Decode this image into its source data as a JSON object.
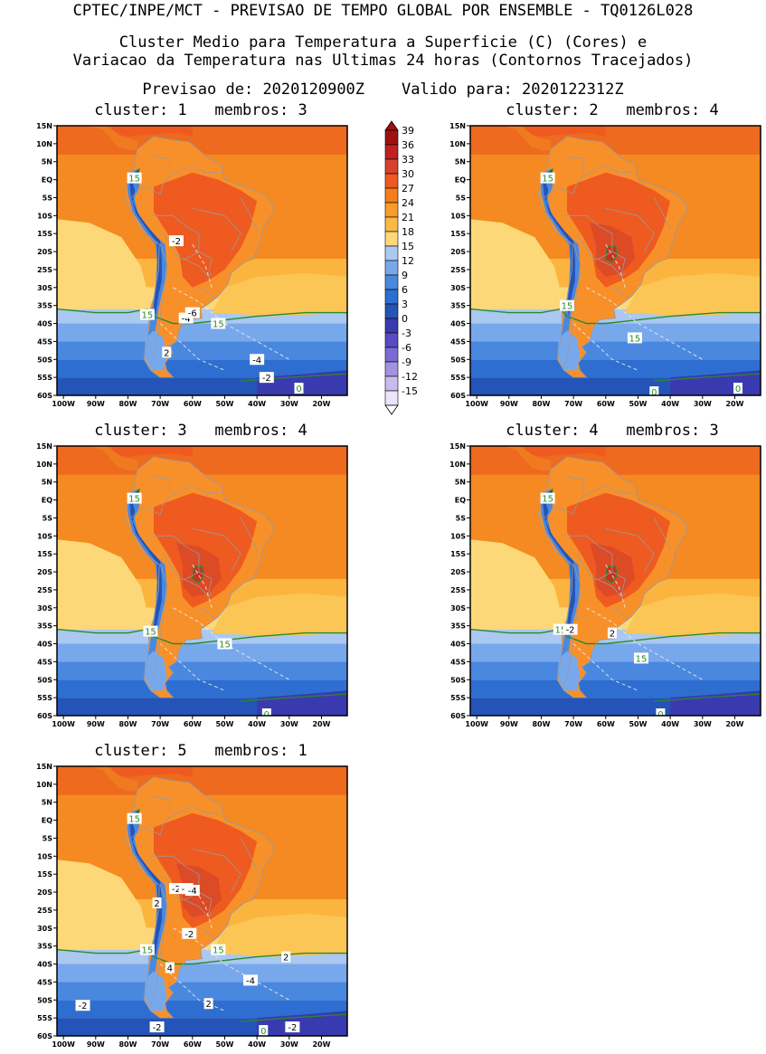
{
  "header": {
    "line1": "CPTEC/INPE/MCT - PREVISAO DE TEMPO GLOBAL POR ENSEMBLE - TQ0126L028",
    "line2": "Cluster Medio para Temperatura a Superficie (C) (Cores) e",
    "line3": "Variacao da Temperatura nas Ultimas 24 horas (Contornos Tracejados)",
    "line4": "Previsao de: 2020120900Z    Valido para: 2020122312Z"
  },
  "lat_labels": [
    "15N",
    "10N",
    "5N",
    "EQ",
    "5S",
    "10S",
    "15S",
    "20S",
    "25S",
    "30S",
    "35S",
    "40S",
    "45S",
    "50S",
    "55S",
    "60S"
  ],
  "lon_labels": [
    "100W",
    "90W",
    "80W",
    "70W",
    "60W",
    "50W",
    "40W",
    "30W",
    "20W"
  ],
  "colorbar": {
    "labels": [
      "39",
      "36",
      "33",
      "30",
      "27",
      "24",
      "21",
      "18",
      "15",
      "12",
      "9",
      "6",
      "3",
      "0",
      "-3",
      "-6",
      "-9",
      "-12",
      "-15"
    ],
    "colors": [
      "#a01010",
      "#c02020",
      "#d84030",
      "#ee5a20",
      "#f57d1c",
      "#fa9c28",
      "#fbb844",
      "#fdd878",
      "#aac8f0",
      "#78a8ec",
      "#4a88e0",
      "#2e6ed0",
      "#2454b8",
      "#3a3ab0",
      "#5a4ac4",
      "#7c6ad4",
      "#a292e2",
      "#c8bcee",
      "#ebe4fa"
    ]
  },
  "panels": [
    {
      "title": "cluster: 1   membros: 3",
      "labels": [
        {
          "t": "15",
          "lon": -78,
          "lat": 0.5,
          "c": "green"
        },
        {
          "t": "-2",
          "lon": -65,
          "lat": -17,
          "c": "black"
        },
        {
          "t": "15",
          "lon": -74,
          "lat": -37.5,
          "c": "green"
        },
        {
          "t": "-4",
          "lon": -62,
          "lat": -38.5,
          "c": "black"
        },
        {
          "t": "-6",
          "lon": -60,
          "lat": -37,
          "c": "black"
        },
        {
          "t": "15",
          "lon": -52,
          "lat": -40,
          "c": "green"
        },
        {
          "t": "2",
          "lon": -68,
          "lat": -48,
          "c": "black"
        },
        {
          "t": "-4",
          "lon": -40,
          "lat": -50,
          "c": "black"
        },
        {
          "t": "-2",
          "lon": -37,
          "lat": -55,
          "c": "black"
        },
        {
          "t": "0",
          "lon": -27,
          "lat": -58,
          "c": "green"
        }
      ]
    },
    {
      "title": "cluster: 2   membros: 4",
      "labels": [
        {
          "t": "15",
          "lon": -78,
          "lat": 0.5,
          "c": "green"
        },
        {
          "t": "15",
          "lon": -72,
          "lat": -35,
          "c": "green"
        },
        {
          "t": "15",
          "lon": -51,
          "lat": -44,
          "c": "green"
        },
        {
          "t": "0",
          "lon": -45,
          "lat": -59,
          "c": "green"
        },
        {
          "t": "0",
          "lon": -19,
          "lat": -58,
          "c": "green"
        }
      ]
    },
    {
      "title": "cluster: 3   membros: 4",
      "labels": [
        {
          "t": "15",
          "lon": -78,
          "lat": 0.5,
          "c": "green"
        },
        {
          "t": "15",
          "lon": -73,
          "lat": -36.5,
          "c": "green"
        },
        {
          "t": "15",
          "lon": -50,
          "lat": -40,
          "c": "green"
        },
        {
          "t": "0",
          "lon": -37,
          "lat": -59.5,
          "c": "green"
        }
      ]
    },
    {
      "title": "cluster: 4   membros: 3",
      "labels": [
        {
          "t": "15",
          "lon": -78,
          "lat": 0.5,
          "c": "green"
        },
        {
          "t": "15",
          "lon": -74,
          "lat": -36,
          "c": "green"
        },
        {
          "t": "-2",
          "lon": -71,
          "lat": -36,
          "c": "black"
        },
        {
          "t": "2",
          "lon": -58,
          "lat": -37,
          "c": "black"
        },
        {
          "t": "15",
          "lon": -49,
          "lat": -44,
          "c": "green"
        },
        {
          "t": "0",
          "lon": -43,
          "lat": -59.5,
          "c": "green"
        }
      ]
    },
    {
      "title": "cluster: 5   membros: 1",
      "labels": [
        {
          "t": "15",
          "lon": -78,
          "lat": 0.5,
          "c": "green"
        },
        {
          "t": "-2",
          "lon": -65,
          "lat": -19,
          "c": "black"
        },
        {
          "t": "-2",
          "lon": -62,
          "lat": -19,
          "c": "black"
        },
        {
          "t": "-4",
          "lon": -60,
          "lat": -19.5,
          "c": "black"
        },
        {
          "t": "2",
          "lon": -71,
          "lat": -23,
          "c": "black"
        },
        {
          "t": "-2",
          "lon": -61,
          "lat": -31.5,
          "c": "black"
        },
        {
          "t": "15",
          "lon": -74,
          "lat": -36,
          "c": "green"
        },
        {
          "t": "15",
          "lon": -52,
          "lat": -36,
          "c": "green"
        },
        {
          "t": "2",
          "lon": -31,
          "lat": -38,
          "c": "black"
        },
        {
          "t": "4",
          "lon": -67,
          "lat": -41,
          "c": "black"
        },
        {
          "t": "-4",
          "lon": -42,
          "lat": -44.5,
          "c": "black"
        },
        {
          "t": "-2",
          "lon": -94,
          "lat": -51.5,
          "c": "black"
        },
        {
          "t": "2",
          "lon": -55,
          "lat": -51,
          "c": "black"
        },
        {
          "t": "-2",
          "lon": -71,
          "lat": -57.5,
          "c": "black"
        },
        {
          "t": "0",
          "lon": -38,
          "lat": -58.5,
          "c": "green"
        },
        {
          "t": "-2",
          "lon": -29,
          "lat": -57.5,
          "c": "black"
        }
      ]
    }
  ]
}
